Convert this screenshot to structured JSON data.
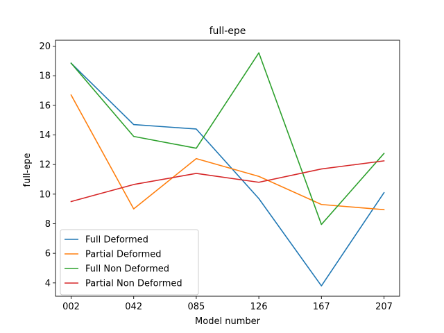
{
  "chart_data": {
    "type": "line",
    "title": "full-epe",
    "xlabel": "Model number",
    "ylabel": "full-epe",
    "categories": [
      "002",
      "042",
      "085",
      "126",
      "167",
      "207"
    ],
    "ylim": [
      3.1,
      20.4
    ],
    "yticks": [
      4,
      6,
      8,
      10,
      12,
      14,
      16,
      18,
      20
    ],
    "grid": false,
    "legend_position": "lower-left",
    "series": [
      {
        "name": "Full Deformed",
        "color": "#1f77b4",
        "values": [
          18.85,
          14.7,
          14.4,
          9.7,
          3.8,
          10.1
        ]
      },
      {
        "name": "Partial Deformed",
        "color": "#ff7f0e",
        "values": [
          16.7,
          9.0,
          12.4,
          11.2,
          9.3,
          8.95
        ]
      },
      {
        "name": "Full Non Deformed",
        "color": "#2ca02c",
        "values": [
          18.85,
          13.9,
          13.1,
          19.55,
          7.95,
          12.75
        ]
      },
      {
        "name": "Partial Non Deformed",
        "color": "#d62728",
        "values": [
          9.5,
          10.65,
          11.4,
          10.8,
          11.7,
          12.25
        ]
      }
    ]
  }
}
